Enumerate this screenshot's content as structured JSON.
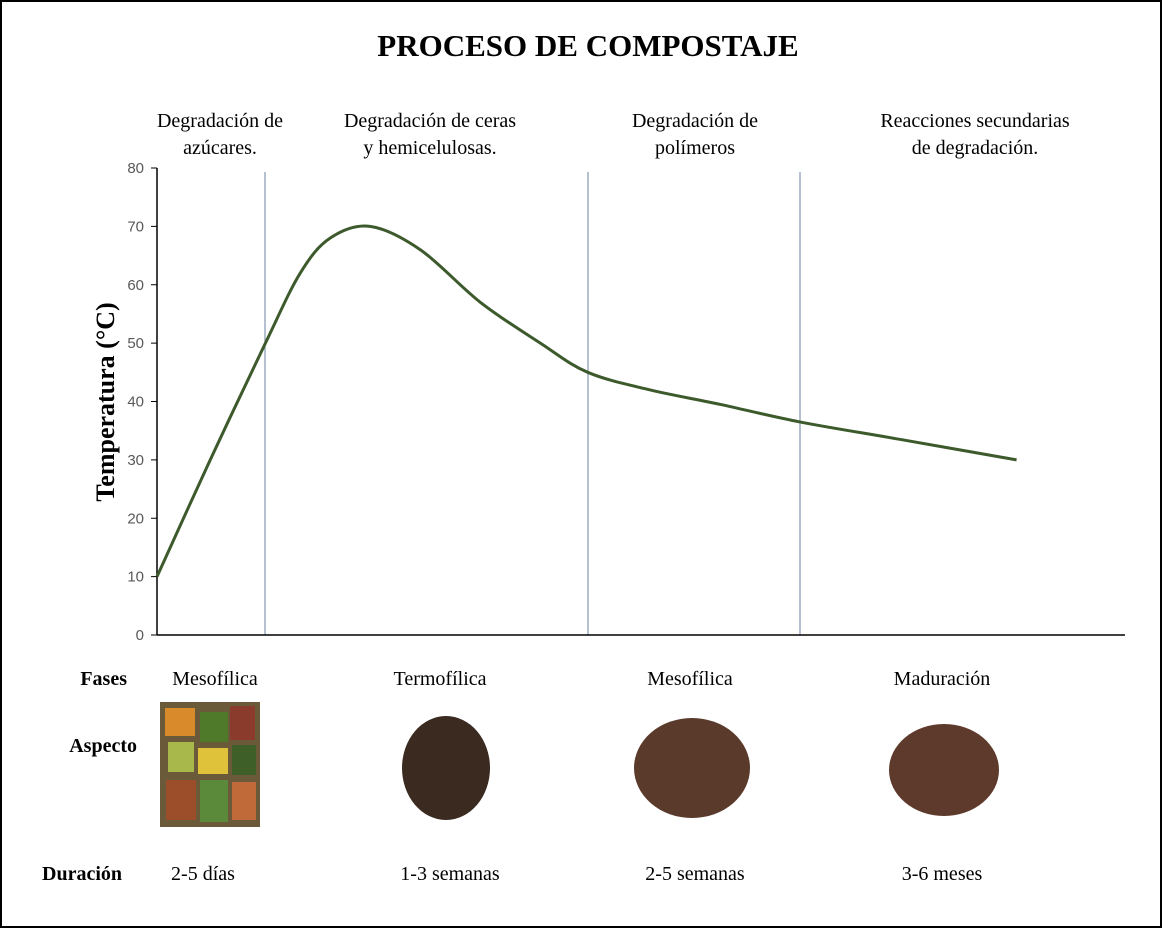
{
  "chart_data": {
    "type": "line",
    "title": "PROCESO DE COMPOSTAJE",
    "y_label": "Temperatura  (°C)",
    "x": [
      0,
      5.5,
      11.2,
      14.8,
      17.9,
      22,
      27.2,
      33.4,
      39.6,
      44.5,
      50.9,
      58.2,
      66.4,
      76.8,
      88.8
    ],
    "values": [
      10,
      30,
      50,
      62,
      68,
      70,
      66,
      57,
      50,
      45,
      42,
      39.5,
      36.5,
      33.5,
      30
    ],
    "color": "#3d5a2c",
    "xlim": [
      0,
      100
    ],
    "ylim": [
      0,
      80
    ],
    "yticks": [
      0,
      10,
      20,
      30,
      40,
      50,
      60,
      70,
      80
    ]
  },
  "row_labels": {
    "phases": "Fases",
    "aspect": "Aspecto",
    "duration": "Duración"
  },
  "stages": [
    {
      "description": [
        "Degradación de",
        "azúcares."
      ],
      "phase": "Mesofílica",
      "duration": "2-5 días"
    },
    {
      "description": [
        "Degradación de ceras",
        "y hemicelulosas."
      ],
      "phase": "Termofílica",
      "duration": "1-3 semanas"
    },
    {
      "description": [
        "Degradación de",
        "polímeros"
      ],
      "phase": "Mesofílica",
      "duration": "2-5 semanas"
    },
    {
      "description": [
        "Reacciones secundarias",
        "de degradación."
      ],
      "phase": "Maduración",
      "duration": "3-6 meses"
    }
  ]
}
